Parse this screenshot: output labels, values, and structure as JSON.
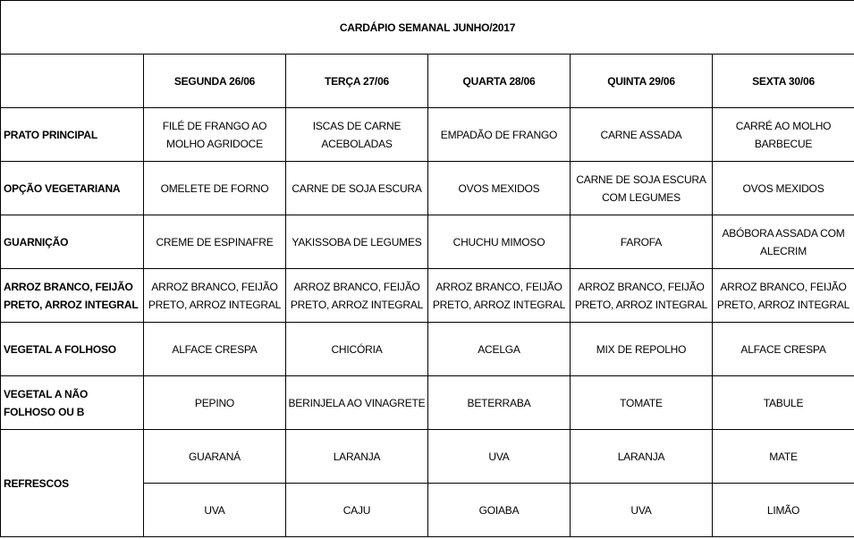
{
  "title": "CARDÁPIO SEMANAL JUNHO/2017",
  "days": [
    "SEGUNDA   26/06",
    "TERÇA  27/06",
    "QUARTA 28/06",
    "QUINTA 29/06",
    "SEXTA 30/06"
  ],
  "rows": [
    {
      "label": "PRATO PRINCIPAL",
      "items": [
        "FILÉ DE FRANGO AO MOLHO AGRIDOCE",
        "ISCAS DE CARNE ACEBOLADAS",
        "EMPADÃO DE FRANGO",
        "CARNE ASSADA",
        "CARRÉ AO MOLHO BARBECUE"
      ]
    },
    {
      "label": "OPÇÃO VEGETARIANA",
      "items": [
        "OMELETE DE FORNO",
        "CARNE DE SOJA ESCURA",
        "OVOS MEXIDOS",
        "CARNE DE SOJA ESCURA COM LEGUMES",
        "OVOS MEXIDOS"
      ]
    },
    {
      "label": "GUARNIÇÃO",
      "items": [
        "CREME DE ESPINAFRE",
        "YAKISSOBA DE LEGUMES",
        "CHUCHU MIMOSO",
        "FAROFA",
        "ABÓBORA ASSADA COM ALECRIM"
      ]
    },
    {
      "label": "ARROZ BRANCO, FEIJÃO PRETO, ARROZ INTEGRAL",
      "items": [
        "ARROZ BRANCO, FEIJÃO PRETO, ARROZ INTEGRAL",
        "ARROZ BRANCO, FEIJÃO PRETO, ARROZ INTEGRAL",
        "ARROZ BRANCO, FEIJÃO PRETO, ARROZ INTEGRAL",
        "ARROZ BRANCO, FEIJÃO PRETO, ARROZ INTEGRAL",
        "ARROZ BRANCO, FEIJÃO PRETO, ARROZ INTEGRAL"
      ]
    },
    {
      "label": "VEGETAL A FOLHOSO",
      "items": [
        "ALFACE CRESPA",
        "CHICÓRIA",
        "ACELGA",
        "MIX DE REPOLHO",
        "ALFACE CRESPA"
      ]
    },
    {
      "label": "VEGETAL A NÃO FOLHOSO OU B",
      "items": [
        "PEPINO",
        "BERINJELA AO VINAGRETE",
        "BETERRABA",
        "TOMATE",
        "TABULE"
      ]
    }
  ],
  "refrescos": {
    "label": "REFRESCOS",
    "row1": [
      "GUARANÁ",
      "LARANJA",
      "UVA",
      "LARANJA",
      "MATE"
    ],
    "row2": [
      "UVA",
      "CAJU",
      "GOIABA",
      "UVA",
      "LIMÃO"
    ]
  }
}
